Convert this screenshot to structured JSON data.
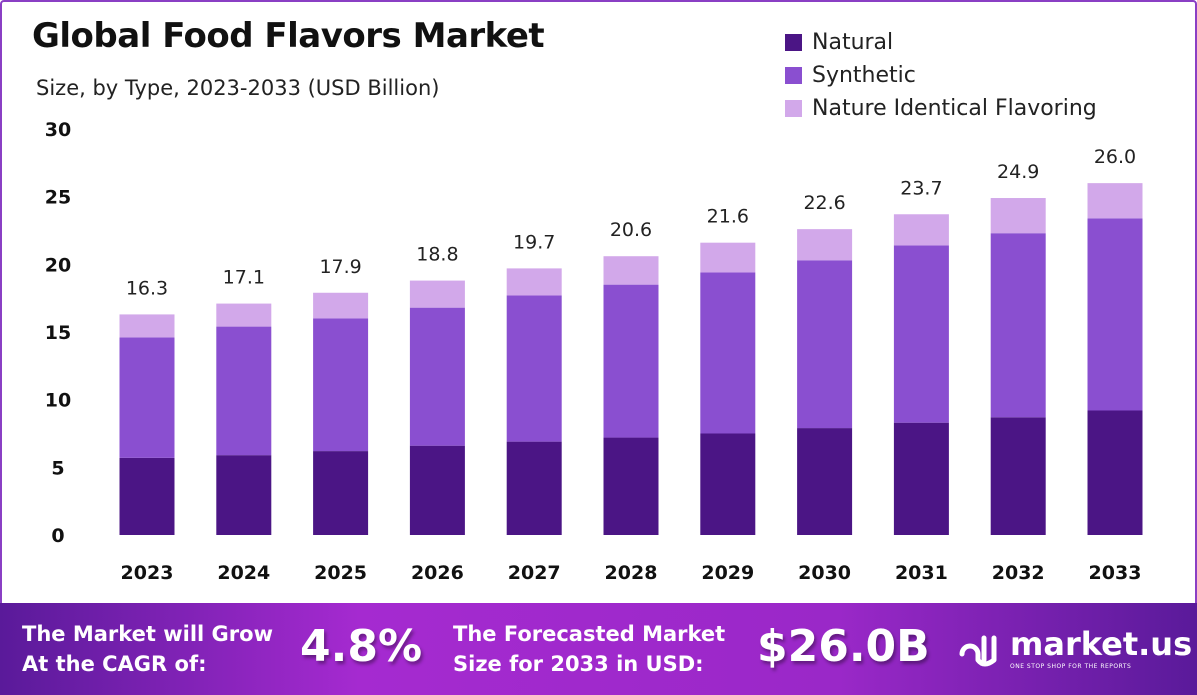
{
  "chart_data": {
    "type": "bar",
    "stacked": true,
    "title": "Global Food Flavors Market",
    "subtitle": "Size, by Type, 2023-2033 (USD Billion)",
    "categories": [
      "2023",
      "2024",
      "2025",
      "2026",
      "2027",
      "2028",
      "2029",
      "2030",
      "2031",
      "2032",
      "2033"
    ],
    "series": [
      {
        "name": "Natural",
        "color": "#4b1585",
        "values": [
          5.7,
          5.9,
          6.2,
          6.6,
          6.9,
          7.2,
          7.5,
          7.9,
          8.3,
          8.7,
          9.2
        ]
      },
      {
        "name": "Synthetic",
        "color": "#8a4fd0",
        "values": [
          8.9,
          9.5,
          9.8,
          10.2,
          10.8,
          11.3,
          11.9,
          12.4,
          13.1,
          13.6,
          14.2
        ]
      },
      {
        "name": "Nature Identical Flavoring",
        "color": "#d2a8ea",
        "values": [
          1.7,
          1.7,
          1.9,
          2.0,
          2.0,
          2.1,
          2.2,
          2.3,
          2.3,
          2.6,
          2.6
        ]
      }
    ],
    "totals": [
      "16.3",
      "17.1",
      "17.9",
      "18.8",
      "19.7",
      "20.6",
      "21.6",
      "22.6",
      "23.7",
      "24.9",
      "26.0"
    ],
    "ylim": [
      0,
      30
    ],
    "yticks": [
      "0",
      "5",
      "10",
      "15",
      "20",
      "25",
      "30"
    ],
    "grid": false,
    "legend": "top-right"
  },
  "footer": {
    "cagr_label_1": "The Market will Grow",
    "cagr_label_2": "At the CAGR of:",
    "cagr_value": "4.8%",
    "forecast_label_1": "The Forecasted Market",
    "forecast_label_2": "Size for 2033 in USD:",
    "forecast_value": "$26.0B",
    "logo_text": "market.us",
    "logo_tagline": "ONE STOP SHOP FOR THE REPORTS"
  }
}
